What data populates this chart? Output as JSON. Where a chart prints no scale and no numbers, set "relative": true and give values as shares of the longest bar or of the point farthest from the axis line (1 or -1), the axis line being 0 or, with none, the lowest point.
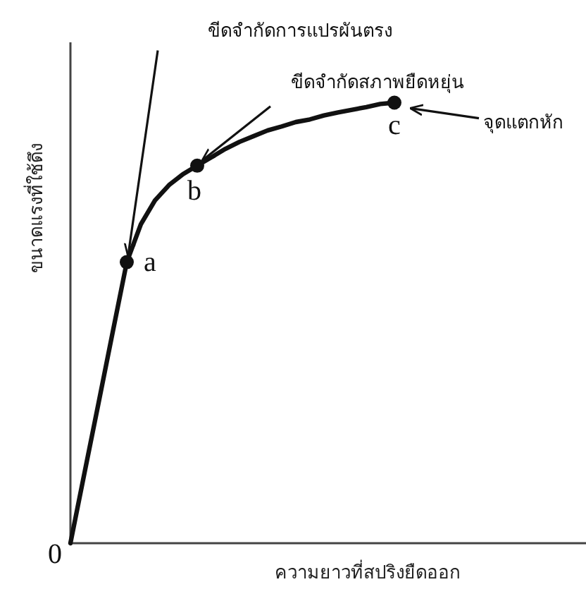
{
  "chart_data": {
    "type": "line",
    "relative": true,
    "xlabel": "ความยาวที่สปริงยืดออก",
    "ylabel": "ขนาดแรงที่ใช้ดึง",
    "categories": [
      null,
      null,
      null,
      null,
      null,
      null,
      null,
      null,
      null,
      null,
      null,
      null,
      null,
      null,
      null,
      null,
      null,
      null,
      null,
      null,
      null,
      null,
      null,
      null
    ],
    "series": [
      {
        "color": "#111111",
        "values": [
          0,
          0.16,
          0.319,
          0.479,
          0.638,
          0.724,
          0.778,
          0.813,
          0.838,
          0.857,
          0.876,
          0.895,
          0.911,
          0.924,
          0.937,
          0.946,
          0.956,
          0.962,
          0.971,
          0.978,
          0.984,
          0.99,
          0.997,
          1
        ]
      }
    ],
    "annotations": [
      "0",
      "a",
      "b",
      "c",
      "ขีดจำกัดการแปรผันตรง",
      "ขีดจำกัดสภาพยืดหยุ่น",
      "จุดแตกหัก"
    ]
  }
}
